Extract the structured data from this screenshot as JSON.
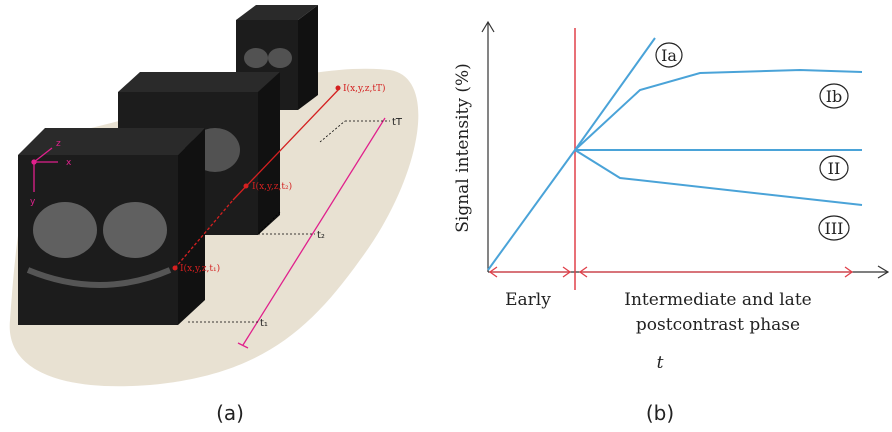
{
  "panel_a": {
    "caption": "(a)",
    "axes": {
      "x": "x",
      "y": "y",
      "z": "z"
    },
    "points": [
      {
        "label": "I(x,y,z,t₁)",
        "time": "t₁"
      },
      {
        "label": "I(x,y,z,t₂)",
        "time": "t₂"
      },
      {
        "label": "I(x,y,z,tT)",
        "time": "tT"
      }
    ]
  },
  "panel_b": {
    "caption": "(b)",
    "y_label": "Signal intensity (%)",
    "x_label": "t",
    "phases": {
      "early": "Early",
      "late": [
        "Intermediate and late",
        "postcontrast phase"
      ]
    },
    "curves": [
      "Ia",
      "Ib",
      "II",
      "III"
    ]
  }
}
